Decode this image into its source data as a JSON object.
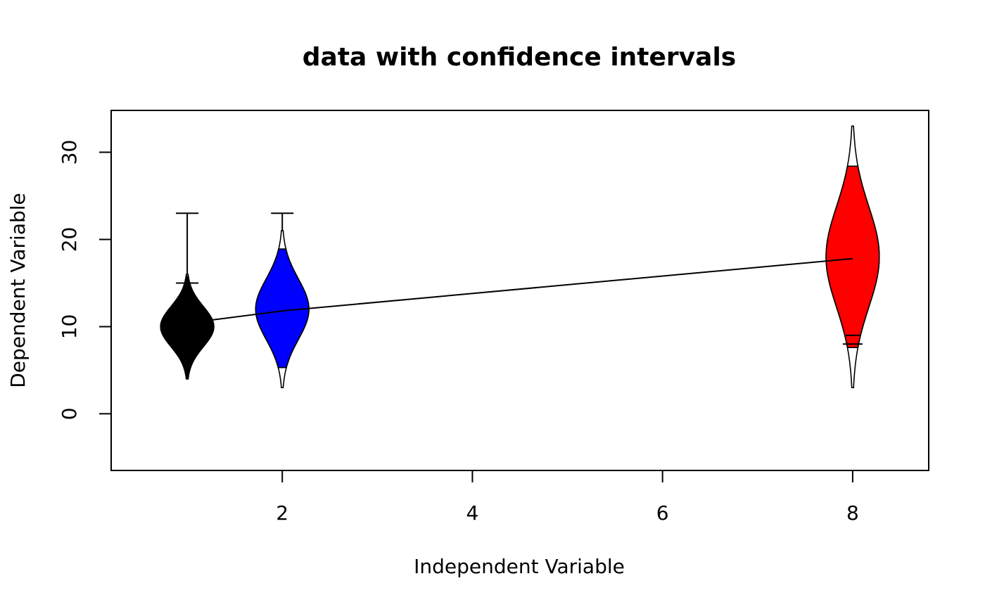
{
  "chart_data": {
    "type": "violin",
    "title": "data with confidence intervals",
    "xlabel": "Independent Variable",
    "ylabel": "Dependent Variable",
    "xlim": [
      0.2,
      8.8
    ],
    "ylim": [
      -6.5,
      34.8
    ],
    "x_ticks": [
      2,
      4,
      6,
      8
    ],
    "y_ticks": [
      0,
      10,
      20,
      30
    ],
    "groups": [
      {
        "x": 1,
        "color": "#000000",
        "mean": 10.4,
        "min": 4,
        "max": 16,
        "ci_low": 4,
        "ci_high": 15.8,
        "whisker_top": 23,
        "whisker_mid": 15,
        "median": 10,
        "half_width": 0.28
      },
      {
        "x": 2,
        "color": "#0000ff",
        "mean": 11.8,
        "min": 3,
        "max": 21,
        "ci_low": 5.3,
        "ci_high": 18.9,
        "whisker_top": 23,
        "median": 12,
        "half_width": 0.28
      },
      {
        "x": 8,
        "color": "#ff0000",
        "mean": 17.8,
        "min": 3,
        "max": 33,
        "ci_low": 7.6,
        "ci_high": 28.4,
        "whisker_low": 8,
        "whisker_low2": 9,
        "median": 18,
        "half_width": 0.28
      }
    ],
    "mean_line": [
      [
        1,
        10.4
      ],
      [
        2,
        11.8
      ],
      [
        8,
        17.8
      ]
    ]
  }
}
